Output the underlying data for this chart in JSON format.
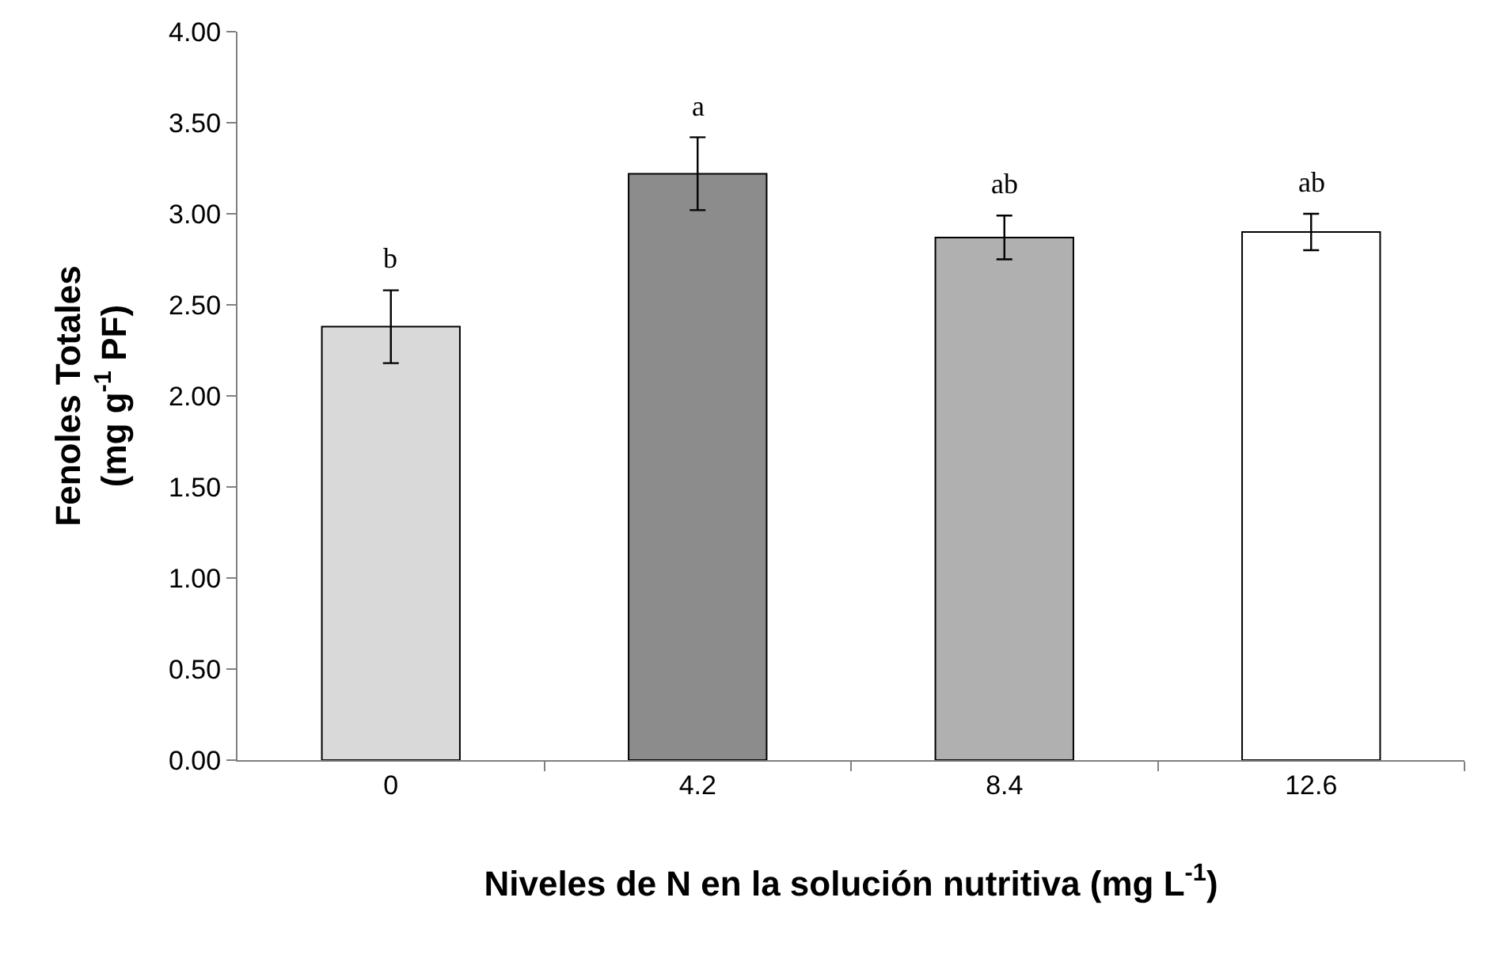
{
  "chart_data": {
    "type": "bar",
    "xlabel": "Niveles de N en la solución nutritiva (mg L$^{-1}$)",
    "ylabel": "Fenoles Totales\n(mg g$^{-1}$ PF)",
    "categories": [
      "0",
      "4.2",
      "8.4",
      "12.6"
    ],
    "values": [
      2.38,
      3.22,
      2.87,
      2.9
    ],
    "errors": [
      0.2,
      0.2,
      0.12,
      0.1
    ],
    "colors": [
      "#d9d9d9",
      "#8c8c8c",
      "#b0b0b0",
      "#ffffff"
    ],
    "ylim": [
      0,
      4
    ],
    "yticks": [
      {
        "value": 0,
        "label": "0.00"
      },
      {
        "value": 0.5,
        "label": "0.50"
      },
      {
        "value": 1,
        "label": "1.00"
      },
      {
        "value": 1.5,
        "label": "1.50"
      },
      {
        "value": 2,
        "label": "2.00"
      },
      {
        "value": 2.5,
        "label": "2.50"
      },
      {
        "value": 3,
        "label": "3.00"
      },
      {
        "value": 3.5,
        "label": "3.50"
      },
      {
        "value": 4,
        "label": "4.00"
      }
    ],
    "annotations": [
      "b",
      "a",
      "ab",
      "ab"
    ],
    "legend": false
  }
}
